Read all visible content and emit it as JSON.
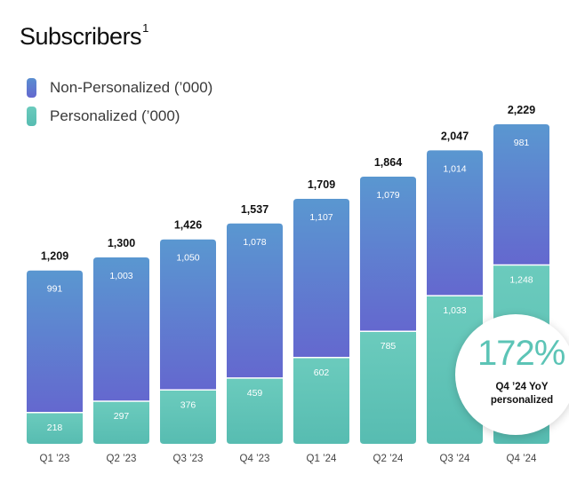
{
  "title": "Subscribers",
  "title_footnote": "1",
  "legend": [
    {
      "label": "Non-Personalized (’000)",
      "color": "#5e6fd0"
    },
    {
      "label": "Personalized (’000)",
      "color": "#6ccdbf"
    }
  ],
  "colors": {
    "non_personalized_top": "#5a97d0",
    "non_personalized_bottom": "#6468cf",
    "personalized_top": "#6bcbbd",
    "personalized_bottom": "#57bcb1"
  },
  "chart_data": {
    "type": "bar",
    "stacked": true,
    "title": "Subscribers",
    "categories": [
      "Q1 ’23",
      "Q2 ’23",
      "Q3 ’23",
      "Q4 ’23",
      "Q1 ’24",
      "Q2 ’24",
      "Q3 ’24",
      "Q4 ’24"
    ],
    "series": [
      {
        "name": "Personalized (’000)",
        "values": [
          218,
          297,
          376,
          459,
          602,
          785,
          1033,
          1248
        ]
      },
      {
        "name": "Non-Personalized (’000)",
        "values": [
          991,
          1003,
          1050,
          1078,
          1107,
          1079,
          1014,
          981
        ]
      }
    ],
    "totals": [
      "1,209",
      "1,300",
      "1,426",
      "1,537",
      "1,709",
      "1,864",
      "2,047",
      "2,229"
    ],
    "personalized_labels": [
      "218",
      "297",
      "376",
      "459",
      "602",
      "785",
      "1,033",
      "1,248"
    ],
    "non_personalized_labels": [
      "991",
      "1,003",
      "1,050",
      "1,078",
      "1,107",
      "1,079",
      "1,014",
      "981"
    ],
    "xlabel": "",
    "ylabel": "",
    "ylim": [
      0,
      2229
    ],
    "grid": false,
    "legend_position": "top-left"
  },
  "badge": {
    "value": "172%",
    "caption_line1": "Q4 ’24 YoY",
    "caption_line2": "personalized"
  }
}
